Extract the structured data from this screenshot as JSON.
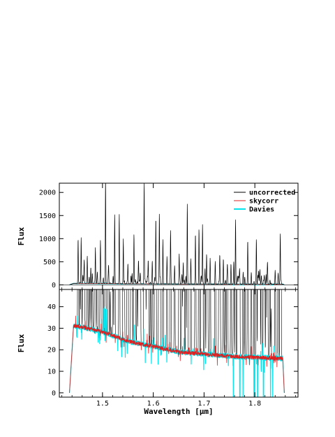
{
  "chart_data": {
    "type": "line",
    "shared_x": {
      "label": "Wavelength [μm]",
      "range": [
        1.415,
        1.885
      ],
      "ticks": [
        1.5,
        1.6,
        1.7,
        1.8
      ],
      "tick_labels": [
        "1.5",
        "1.6",
        "1.7",
        "1.8"
      ]
    },
    "legend": {
      "placement": "top-right",
      "entries": [
        {
          "label": "uncorrected",
          "color": "#000000"
        },
        {
          "label": "skycorr",
          "color": "#e02020"
        },
        {
          "label": "Davies",
          "color": "#00e5ee"
        }
      ]
    },
    "panels": [
      {
        "ylabel": "Flux",
        "ylim": [
          -100,
          2200
        ],
        "yticks": [
          0,
          500,
          1000,
          1500,
          2000
        ],
        "ytick_labels": [
          "0",
          "500",
          "1000",
          "1500",
          "2000"
        ],
        "series": [
          {
            "name": "uncorrected",
            "color": "#000000",
            "continuum": "falling from ~30 near 1.45 μm to ~16 near 1.85 μm",
            "emission_lines": [
              [
                1.452,
                970
              ],
              [
                1.458,
                880
              ],
              [
                1.464,
                500
              ],
              [
                1.47,
                600
              ],
              [
                1.477,
                350
              ],
              [
                1.486,
                780
              ],
              [
                1.496,
                900
              ],
              [
                1.506,
                2140
              ],
              [
                1.512,
                380
              ],
              [
                1.524,
                1510
              ],
              [
                1.533,
                1510
              ],
              [
                1.541,
                970
              ],
              [
                1.55,
                440
              ],
              [
                1.562,
                900
              ],
              [
                1.571,
                420
              ],
              [
                1.582,
                2060
              ],
              [
                1.59,
                520
              ],
              [
                1.598,
                500
              ],
              [
                1.605,
                1430
              ],
              [
                1.612,
                1530
              ],
              [
                1.619,
                960
              ],
              [
                1.627,
                600
              ],
              [
                1.634,
                1100
              ],
              [
                1.642,
                400
              ],
              [
                1.651,
                650
              ],
              [
                1.659,
                460
              ],
              [
                1.667,
                1740
              ],
              [
                1.674,
                520
              ],
              [
                1.683,
                1090
              ],
              [
                1.69,
                1200
              ],
              [
                1.697,
                1290
              ],
              [
                1.705,
                650
              ],
              [
                1.712,
                560
              ],
              [
                1.722,
                470
              ],
              [
                1.731,
                570
              ],
              [
                1.738,
                550
              ],
              [
                1.746,
                420
              ],
              [
                1.753,
                440
              ],
              [
                1.762,
                1390
              ],
              [
                1.77,
                330
              ],
              [
                1.777,
                260
              ],
              [
                1.786,
                950
              ],
              [
                1.793,
                240
              ],
              [
                1.803,
                980
              ],
              [
                1.81,
                250
              ],
              [
                1.825,
                180
              ],
              [
                1.84,
                300
              ],
              [
                1.85,
                900
              ]
            ]
          }
        ]
      },
      {
        "ylabel": "Flux",
        "ylim": [
          -2,
          48
        ],
        "yticks": [
          0,
          10,
          20,
          30,
          40
        ],
        "ytick_labels": [
          "0",
          "10",
          "20",
          "30",
          "40"
        ],
        "series": [
          {
            "name": "uncorrected",
            "color": "#000000",
            "description": "continuum plus emission lines clipped at top of panel"
          },
          {
            "name": "skycorr",
            "color": "#e02020",
            "continuum_points": [
              [
                1.448,
                31
              ],
              [
                1.48,
                29.5
              ],
              [
                1.51,
                27.5
              ],
              [
                1.55,
                24
              ],
              [
                1.6,
                21.5
              ],
              [
                1.65,
                19
              ],
              [
                1.7,
                18
              ],
              [
                1.75,
                17
              ],
              [
                1.8,
                16.5
              ],
              [
                1.85,
                16
              ]
            ]
          },
          {
            "name": "Davies",
            "color": "#00e5ee",
            "continuum_points": [
              [
                1.448,
                31
              ],
              [
                1.48,
                29.5
              ],
              [
                1.51,
                27.5
              ],
              [
                1.55,
                24
              ],
              [
                1.6,
                21.5
              ],
              [
                1.65,
                19
              ],
              [
                1.7,
                18
              ],
              [
                1.75,
                17
              ],
              [
                1.8,
                16.5
              ],
              [
                1.85,
                16
              ]
            ]
          }
        ],
        "signal_range": [
          1.443,
          1.855
        ]
      }
    ]
  }
}
